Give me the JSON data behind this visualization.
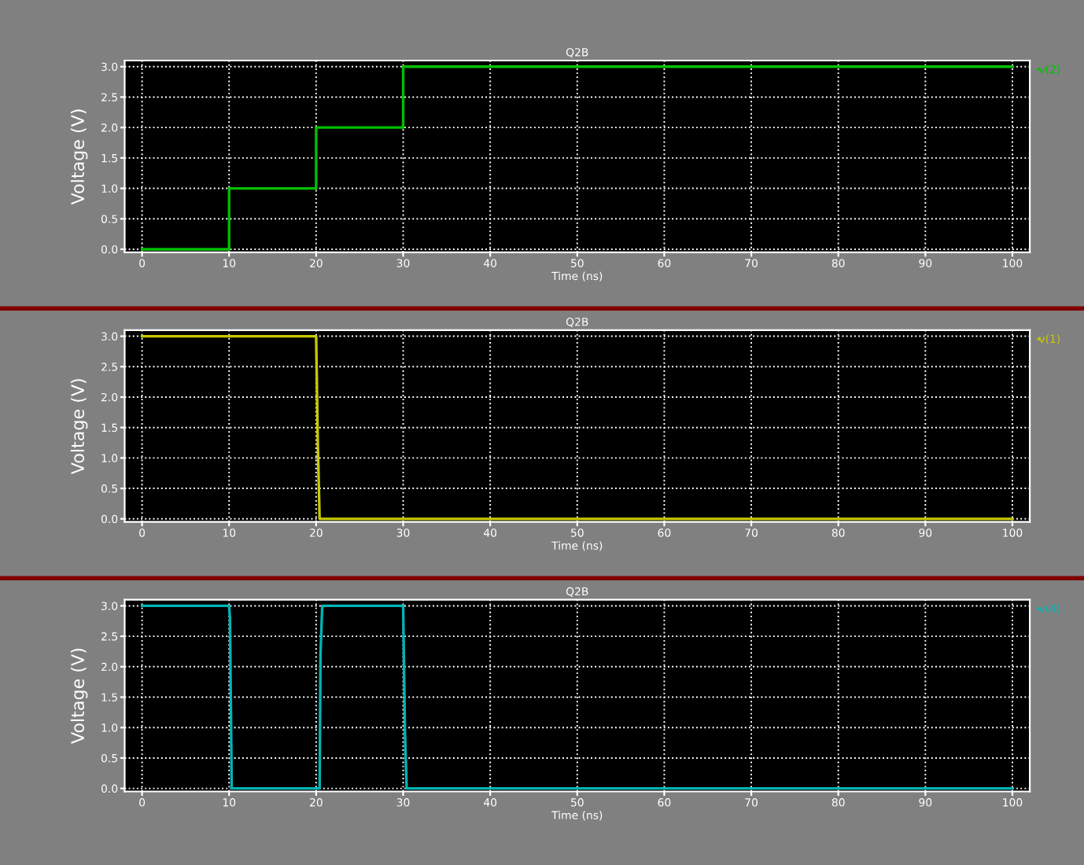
{
  "chart_data": [
    {
      "type": "line",
      "title": "Q2B",
      "xlabel": "Time (ns)",
      "ylabel": "Voltage (V)",
      "xlim": [
        -2,
        102
      ],
      "ylim": [
        -0.05,
        3.1
      ],
      "xticks": [
        0,
        10,
        20,
        30,
        40,
        50,
        60,
        70,
        80,
        90,
        100
      ],
      "yticks": [
        {
          "value": 0,
          "label": "0.0"
        },
        {
          "value": 0.5,
          "label": "0.5"
        },
        {
          "value": 1,
          "label": "1.0"
        },
        {
          "value": 1.5,
          "label": "1.5"
        },
        {
          "value": 2,
          "label": "2.0"
        },
        {
          "value": 2.5,
          "label": "2.5"
        },
        {
          "value": 3,
          "label": "3.0"
        }
      ],
      "grid": true,
      "legend": "top right",
      "marker": "none",
      "line_style": "solid",
      "series": [
        {
          "name": "v(2)",
          "color": "#00c000",
          "x": [
            0,
            10,
            10,
            20,
            20,
            30,
            30,
            100
          ],
          "values": [
            0,
            0,
            1,
            1,
            2,
            2,
            3,
            3
          ]
        }
      ]
    },
    {
      "type": "line",
      "title": "Q2B",
      "xlabel": "Time (ns)",
      "ylabel": "Voltage (V)",
      "xlim": [
        -2,
        102
      ],
      "ylim": [
        -0.05,
        3.1
      ],
      "xticks": [
        0,
        10,
        20,
        30,
        40,
        50,
        60,
        70,
        80,
        90,
        100
      ],
      "yticks": [
        {
          "value": 0,
          "label": "0.0"
        },
        {
          "value": 0.5,
          "label": "0.5"
        },
        {
          "value": 1,
          "label": "1.0"
        },
        {
          "value": 1.5,
          "label": "1.5"
        },
        {
          "value": 2,
          "label": "2.0"
        },
        {
          "value": 2.5,
          "label": "2.5"
        },
        {
          "value": 3,
          "label": "3.0"
        }
      ],
      "grid": true,
      "legend": "top right",
      "marker": "none",
      "line_style": "solid",
      "series": [
        {
          "name": "v(1)",
          "color": "#c8c800",
          "x": [
            0,
            20,
            20.2,
            20.4,
            100
          ],
          "values": [
            3,
            3,
            1.2,
            0,
            0
          ]
        }
      ]
    },
    {
      "type": "line",
      "title": "Q2B",
      "xlabel": "Time (ns)",
      "ylabel": "Voltage (V)",
      "xlim": [
        -2,
        102
      ],
      "ylim": [
        -0.05,
        3.1
      ],
      "xticks": [
        0,
        10,
        20,
        30,
        40,
        50,
        60,
        70,
        80,
        90,
        100
      ],
      "yticks": [
        {
          "value": 0,
          "label": "0.0"
        },
        {
          "value": 0.5,
          "label": "0.5"
        },
        {
          "value": 1,
          "label": "1.0"
        },
        {
          "value": 1.5,
          "label": "1.5"
        },
        {
          "value": 2,
          "label": "2.0"
        },
        {
          "value": 2.5,
          "label": "2.5"
        },
        {
          "value": 3,
          "label": "3.0"
        }
      ],
      "grid": true,
      "legend": "top right",
      "marker": "none",
      "line_style": "solid",
      "series": [
        {
          "name": "v(4)",
          "color": "#00b4b4",
          "x": [
            0,
            10,
            10.1,
            10.3,
            20.2,
            20.4,
            20.5,
            20.7,
            30,
            30.2,
            30.4,
            100
          ],
          "values": [
            3,
            3,
            2.8,
            0,
            0,
            0,
            2.2,
            3,
            3,
            0.95,
            0,
            0
          ]
        }
      ]
    }
  ]
}
